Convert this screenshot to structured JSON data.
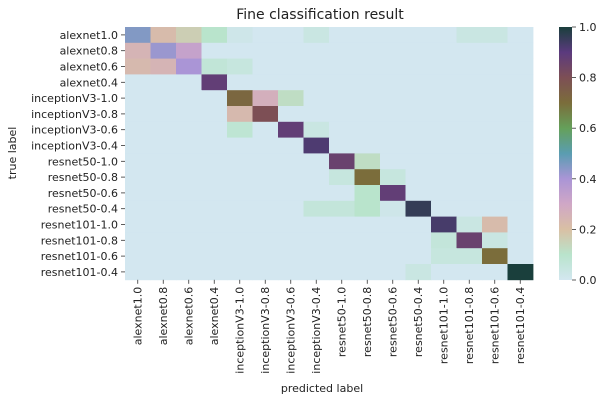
{
  "chart_data": {
    "type": "heatmap",
    "title": "Fine classification result",
    "xlabel": "predicted label",
    "ylabel": "true label",
    "rows": [
      "alexnet1.0",
      "alexnet0.8",
      "alexnet0.6",
      "alexnet0.4",
      "inceptionV3-1.0",
      "inceptionV3-0.8",
      "inceptionV3-0.6",
      "inceptionV3-0.4",
      "resnet50-1.0",
      "resnet50-0.8",
      "resnet50-0.6",
      "resnet50-0.4",
      "resnet101-1.0",
      "resnet101-0.8",
      "resnet101-0.6",
      "resnet101-0.4"
    ],
    "columns": [
      "alexnet1.0",
      "alexnet0.8",
      "alexnet0.6",
      "alexnet0.4",
      "inceptionV3-1.0",
      "inceptionV3-0.8",
      "inceptionV3-0.6",
      "inceptionV3-0.4",
      "resnet50-1.0",
      "resnet50-0.8",
      "resnet50-0.6",
      "resnet50-0.4",
      "resnet101-1.0",
      "resnet101-0.8",
      "resnet101-0.6",
      "resnet101-0.4"
    ],
    "values": [
      [
        0.45,
        0.22,
        0.16,
        0.1,
        0.02,
        0,
        0,
        0.04,
        0,
        0,
        0,
        0,
        0,
        0.04,
        0.04,
        0
      ],
      [
        0.25,
        0.42,
        0.33,
        0,
        0,
        0,
        0,
        0,
        0,
        0,
        0,
        0,
        0,
        0,
        0,
        0
      ],
      [
        0.23,
        0.25,
        0.4,
        0.07,
        0.05,
        0,
        0,
        0,
        0,
        0,
        0,
        0,
        0,
        0,
        0,
        0
      ],
      [
        0,
        0,
        0,
        0.88,
        0,
        0,
        0,
        0,
        0,
        0,
        0,
        0,
        0,
        0,
        0,
        0
      ],
      [
        0,
        0,
        0,
        0,
        0.72,
        0.27,
        0.12,
        0,
        0,
        0,
        0,
        0,
        0,
        0,
        0,
        0
      ],
      [
        0,
        0,
        0,
        0,
        0.23,
        0.8,
        0,
        0,
        0,
        0,
        0,
        0,
        0,
        0,
        0,
        0
      ],
      [
        0,
        0,
        0,
        0,
        0.08,
        0,
        0.88,
        0.04,
        0,
        0,
        0,
        0,
        0,
        0,
        0,
        0
      ],
      [
        0,
        0,
        0,
        0,
        0,
        0,
        0,
        0.92,
        0,
        0,
        0,
        0,
        0,
        0,
        0,
        0
      ],
      [
        0,
        0,
        0,
        0,
        0,
        0,
        0,
        0,
        0.86,
        0.12,
        0,
        0,
        0,
        0,
        0,
        0
      ],
      [
        0,
        0,
        0,
        0,
        0,
        0,
        0,
        0,
        0.05,
        0.7,
        0.05,
        0,
        0,
        0,
        0,
        0
      ],
      [
        0,
        0,
        0,
        0,
        0,
        0,
        0,
        0,
        0,
        0.1,
        0.88,
        0,
        0,
        0,
        0,
        0
      ],
      [
        0,
        0,
        0,
        0,
        0,
        0,
        0,
        0.06,
        0.06,
        0.1,
        0.02,
        0.96,
        0,
        0,
        0,
        0
      ],
      [
        0,
        0,
        0,
        0,
        0,
        0,
        0,
        0,
        0,
        0,
        0,
        0,
        0.93,
        0.04,
        0.22,
        0
      ],
      [
        0,
        0,
        0,
        0,
        0,
        0,
        0,
        0,
        0,
        0,
        0,
        0,
        0.06,
        0.86,
        0.04,
        0
      ],
      [
        0,
        0,
        0,
        0,
        0,
        0,
        0,
        0,
        0,
        0,
        0,
        0,
        0.05,
        0.05,
        0.7,
        0
      ],
      [
        0,
        0,
        0,
        0,
        0,
        0,
        0,
        0,
        0,
        0,
        0,
        0.04,
        0,
        0,
        0,
        1.0
      ]
    ],
    "vmin": 0.0,
    "vmax": 1.0,
    "colorbar_ticks": [
      "0.0",
      "0.2",
      "0.4",
      "0.6",
      "0.8",
      "1.0"
    ],
    "colormap": "cubehelix_r-like",
    "colormap_stops": [
      "#d3e7f0",
      "#b9e4cc",
      "#d9c0a4",
      "#d0a7c6",
      "#aa95d6",
      "#5a9db1",
      "#65a05a",
      "#7b6d3b",
      "#7d4f55",
      "#5b3a7e",
      "#1a3f3c"
    ],
    "grid": false,
    "legend": "colorbar-right"
  }
}
